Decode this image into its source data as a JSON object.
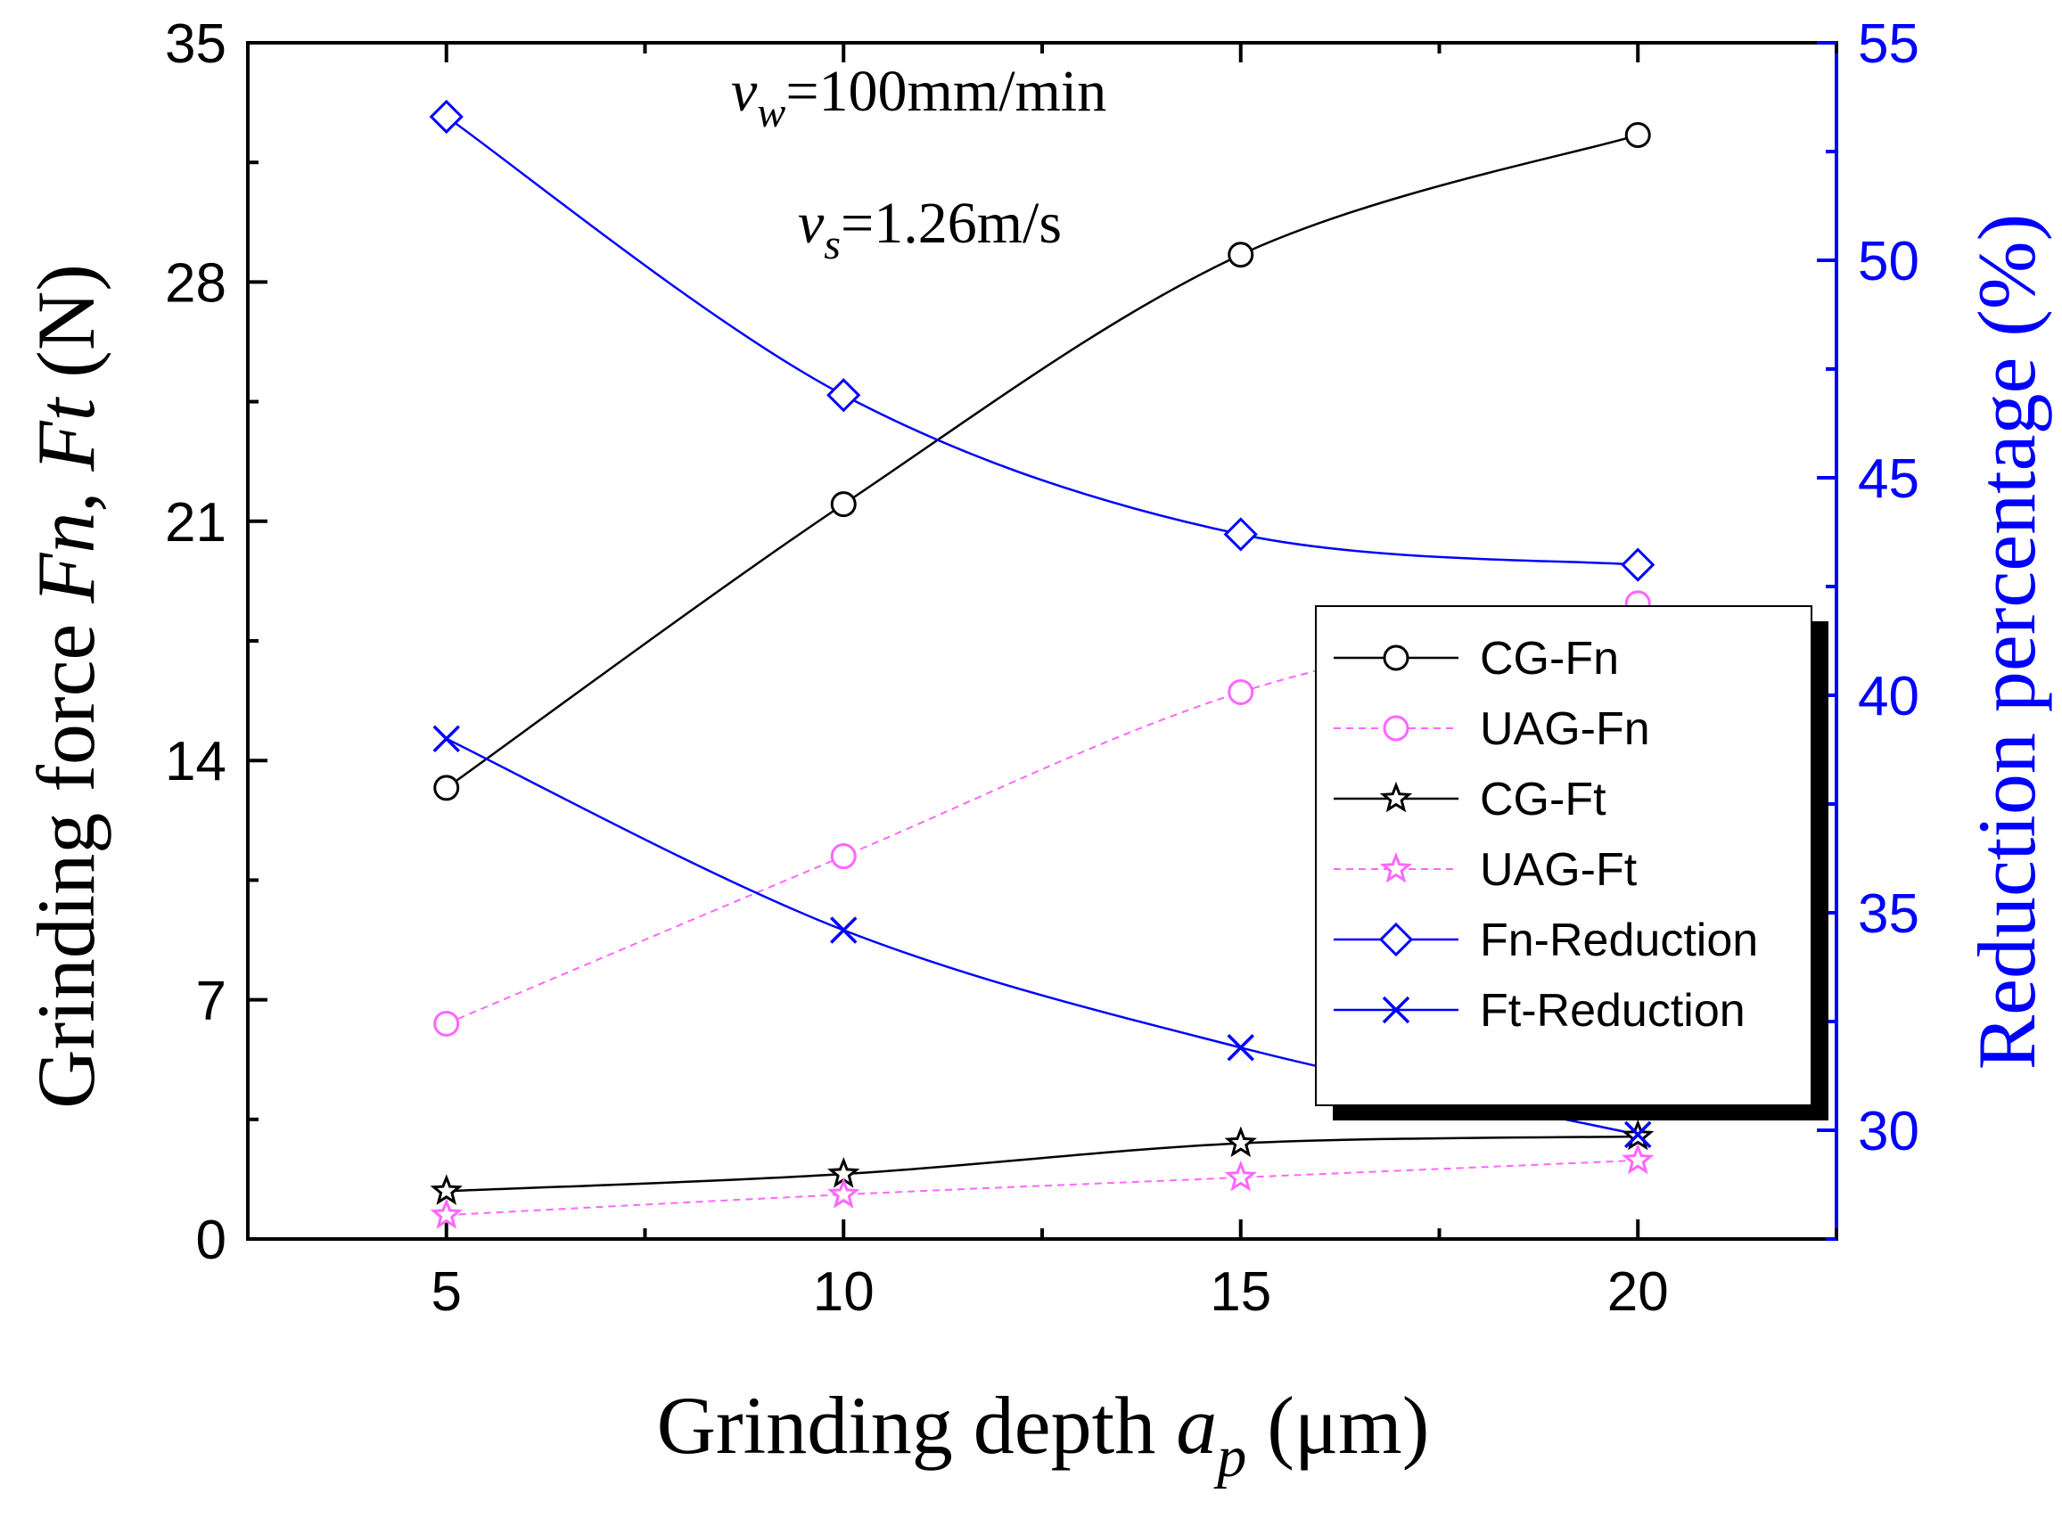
{
  "chart_data": {
    "type": "line",
    "x": [
      5,
      10,
      15,
      20
    ],
    "xlabel": {
      "prefix": "Grinding depth ",
      "var": "a",
      "sub": "p",
      "unit": " (μm)"
    },
    "ylabel_left": {
      "prefix": "Grinding force ",
      "var1": "Fn",
      "sep": ", ",
      "var2": "Ft",
      "unit": " (N)"
    },
    "ylabel_right": "Reduction percentage (%)",
    "xlim": [
      2.5,
      22.5
    ],
    "ylim_left": [
      0,
      35
    ],
    "ylim_right": [
      27.5,
      55
    ],
    "xticks": [
      5,
      10,
      15,
      20
    ],
    "yticks_left": [
      0,
      7,
      14,
      21,
      28,
      35
    ],
    "yticks_right": [
      30,
      35,
      40,
      45,
      50,
      55
    ],
    "annotations": [
      {
        "var": "v",
        "sub": "w",
        "text": "=100mm/min"
      },
      {
        "var": "v",
        "sub": "s",
        "text": "=1.26m/s"
      }
    ],
    "series": [
      {
        "name": "CG-Fn",
        "axis": "left",
        "marker": "circle",
        "color": "#000000",
        "dashed": false,
        "values": [
          13.2,
          21.5,
          28.8,
          32.3
        ]
      },
      {
        "name": "UAG-Fn",
        "axis": "left",
        "marker": "circle",
        "color": "#ff66ff",
        "dashed": true,
        "values": [
          6.3,
          11.2,
          16.0,
          18.6
        ]
      },
      {
        "name": "CG-Ft",
        "axis": "left",
        "marker": "star",
        "color": "#000000",
        "dashed": false,
        "values": [
          1.4,
          1.9,
          2.8,
          3.0
        ]
      },
      {
        "name": "UAG-Ft",
        "axis": "left",
        "marker": "star",
        "color": "#ff66ff",
        "dashed": true,
        "values": [
          0.7,
          1.3,
          1.8,
          2.3
        ]
      },
      {
        "name": "Fn-Reduction",
        "axis": "right",
        "marker": "diamond",
        "color": "#0000ff",
        "dashed": false,
        "values": [
          53.3,
          46.9,
          43.7,
          43.0
        ]
      },
      {
        "name": "Ft-Reduction",
        "axis": "right",
        "marker": "x",
        "color": "#0000ff",
        "dashed": false,
        "values": [
          39.0,
          34.6,
          31.9,
          29.9
        ]
      }
    ],
    "legend_position": "center-right",
    "colors": {
      "left_axis": "#000000",
      "right_axis": "#0000ff"
    }
  }
}
